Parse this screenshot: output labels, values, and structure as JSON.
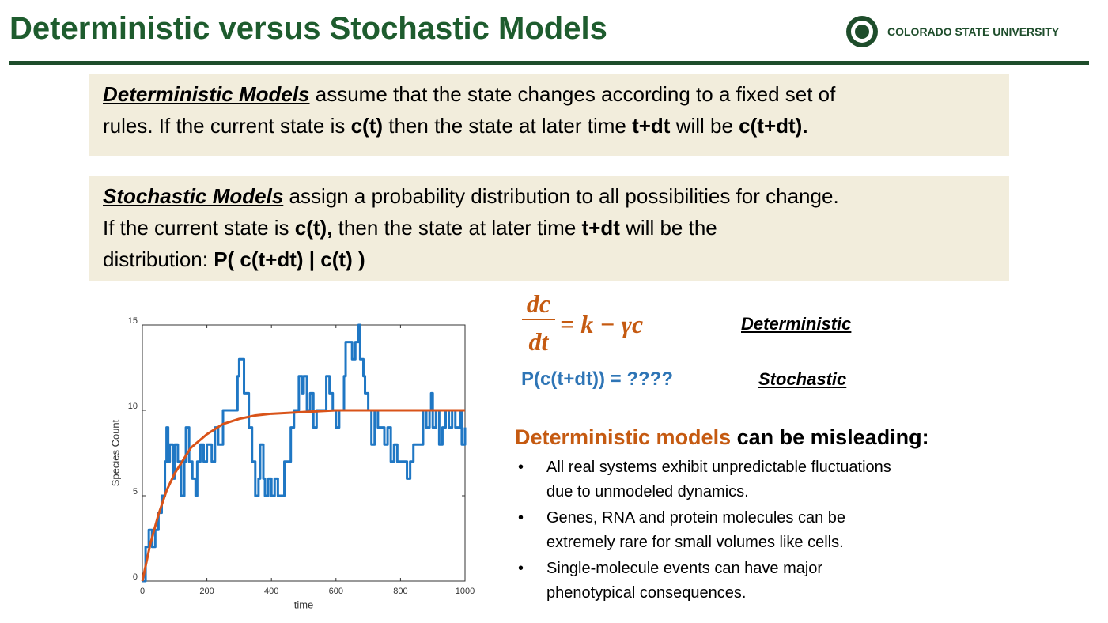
{
  "header": {
    "title": "Deterministic versus Stochastic Models",
    "logo_text": "COLORADO STATE UNIVERSITY"
  },
  "deterministic_box": {
    "parts": [
      "Deterministic Models",
      " assume that the state changes according to a fixed set of",
      "rules.  If the current state is ",
      "c(t)",
      " then the state at later time ",
      "t+dt",
      " will be ",
      "c(t+dt)."
    ]
  },
  "stochastic_box": {
    "parts": [
      "Stochastic Models",
      " assign a probability distribution to all possibilities for change.",
      "If the current state is ",
      "c(t),",
      " then the state at later time ",
      "t+dt",
      " will be the",
      "distribution:  ",
      "P( c(t+dt) | c(t) )"
    ]
  },
  "equation": {
    "numerator": "dc",
    "denominator": "dt",
    "rhs": "= k − γc",
    "label": "Deterministic"
  },
  "stochastic_eq": {
    "text": "P(c(t+dt)) = ????",
    "label": "Stochastic"
  },
  "misleading": {
    "heading_colored": "Deterministic models",
    "heading_rest": " can be misleading:",
    "bullets": [
      [
        "All real systems exhibit unpredictable fluctuations",
        "due to unmodeled dynamics."
      ],
      [
        "Genes, RNA and protein molecules can be",
        "extremely rare for small volumes like cells."
      ],
      [
        "Single-molecule events can have major",
        "phenotypical consequences."
      ]
    ]
  },
  "chart_data": {
    "type": "line",
    "x_label": "time",
    "y_label": "Species Count",
    "xlim": [
      0,
      1000
    ],
    "ylim": [
      0,
      15
    ],
    "xticks": [
      0,
      200,
      400,
      600,
      800,
      1000
    ],
    "yticks": [
      0,
      5,
      10,
      15
    ],
    "series": [
      {
        "name": "Stochastic",
        "color": "#1f77c4",
        "step": true,
        "x": [
          0,
          10,
          20,
          30,
          40,
          50,
          60,
          70,
          75,
          80,
          85,
          95,
          100,
          110,
          120,
          130,
          135,
          145,
          155,
          165,
          170,
          180,
          190,
          200,
          215,
          225,
          235,
          250,
          295,
          300,
          315,
          330,
          340,
          350,
          360,
          365,
          375,
          380,
          390,
          400,
          410,
          420,
          440,
          460,
          470,
          485,
          495,
          500,
          510,
          520,
          530,
          540,
          570,
          580,
          590,
          600,
          610,
          625,
          630,
          650,
          660,
          670,
          675,
          685,
          690,
          700,
          710,
          720,
          730,
          750,
          760,
          770,
          780,
          790,
          820,
          830,
          840,
          870,
          880,
          890,
          895,
          900,
          910,
          920,
          930,
          940,
          950,
          960,
          970,
          985,
          990,
          1000
        ],
        "values": [
          0,
          2,
          3,
          2,
          3,
          4,
          5,
          7,
          9,
          7,
          8,
          6,
          8,
          7,
          5,
          7,
          9,
          7,
          6,
          5,
          7,
          8,
          7,
          8,
          7,
          9,
          8,
          10,
          12,
          13,
          11,
          9,
          7,
          5,
          6,
          8,
          6,
          5,
          6,
          5,
          6,
          5,
          7,
          9,
          10,
          12,
          11,
          12,
          10,
          11,
          9,
          10,
          12,
          11,
          10,
          9,
          10,
          12,
          14,
          13,
          14,
          15,
          13,
          12,
          11,
          10,
          8,
          10,
          9,
          8,
          9,
          7,
          8,
          7,
          6,
          7,
          8,
          10,
          9,
          10,
          11,
          9,
          10,
          8,
          9,
          10,
          9,
          10,
          9,
          10,
          8,
          9
        ]
      },
      {
        "name": "Deterministic",
        "color": "#d95319",
        "x": [
          0,
          25,
          50,
          75,
          100,
          150,
          200,
          250,
          300,
          350,
          400,
          500,
          600,
          700,
          800,
          900,
          1000
        ],
        "values": [
          0,
          2.2,
          3.9,
          5.3,
          6.3,
          7.8,
          8.6,
          9.2,
          9.5,
          9.7,
          9.8,
          9.9,
          10,
          10,
          10,
          10,
          10
        ]
      }
    ]
  }
}
